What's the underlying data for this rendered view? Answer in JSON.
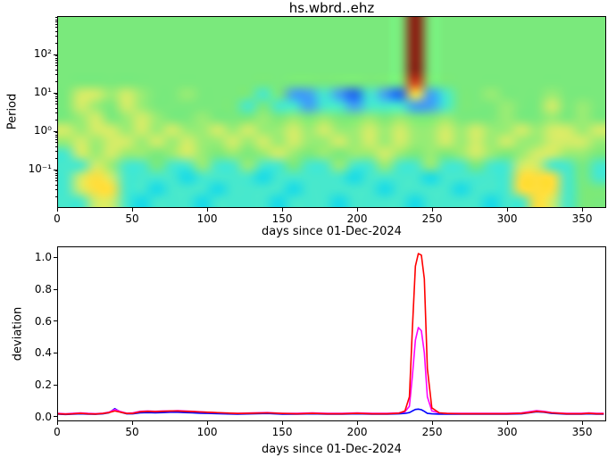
{
  "figure_title": "hs.wbrd..ehz",
  "chart_data": [
    {
      "type": "heatmap",
      "title": "hs.wbrd..ehz",
      "xlabel": "days since 01-Dec-2024",
      "ylabel": "Period",
      "x_range": [
        0,
        366
      ],
      "x_ticks": [
        0,
        50,
        100,
        150,
        200,
        250,
        300,
        350
      ],
      "y_scale": "log",
      "y_range": [
        0.01,
        1000
      ],
      "y_ticks": [
        {
          "value": 100,
          "label": "10²"
        },
        {
          "value": 10,
          "label": "10¹"
        },
        {
          "value": 1,
          "label": "10⁰"
        },
        {
          "value": 0.1,
          "label": "10⁻¹"
        }
      ],
      "legend": null,
      "grid_on": false,
      "palette": {
        "g": "#7ae97c",
        "e": "#9aec74",
        "y": "#d4ec68",
        "Y": "#ffde3c",
        "c": "#47e8cd",
        "C": "#16daea",
        "b": "#41a0f2",
        "B": "#1e66ee",
        "r": "#8c0f0a",
        "q": "#d43413"
      },
      "grid": [
        "gggggggggggggggggggggggrgggggggggggg",
        "gggggggggggggggggggggggrgggggggggggg",
        "gggggggggggggggggggggggrgggggggggggg",
        "gggggggggggggggggggggggrgggggggggggg",
        "gggggggggggggggggggggggrgggggggggggg",
        "gggggggggggggggggggggggqgggggggggggg",
        "gyyeyeggeggggcgbbcbBcbBYbcggegggeggg",
        "gyegyeggggggcgccbccbcccbbcgggeggygeg",
        "geygeyeggegggegegeggegeggegggeggegeg",
        "yeyyeyeyeeyeyeeyeyeeyeyeeyeyeeyeyyey",
        "eyeyyeyeyeeyeyeyeeyeyeyeeyeyeyeeyyye",
        "cyeyeegeyegegeyegegeeyegegeyegeyyeeg",
        "ccyeccgccecceccgcceccecceccgccyyccgc",
        "cyYyccccCccccCcccccCccccCcccccYYYcgc",
        "cyYYccCcccCccccCcccccCccccCcccYYYcgg",
        "ccyycCcccCccccCcccCccccCccccCccYycgg"
      ]
    },
    {
      "type": "line",
      "xlabel": "days since 01-Dec-2024",
      "ylabel": "deviation",
      "x_range": [
        0,
        366
      ],
      "x_ticks": [
        0,
        50,
        100,
        150,
        200,
        250,
        300,
        350
      ],
      "y_range": [
        -0.03,
        1.07
      ],
      "y_ticks": [
        0.0,
        0.2,
        0.4,
        0.6,
        0.8,
        1.0
      ],
      "legend": null,
      "x": [
        0,
        5,
        10,
        15,
        20,
        25,
        30,
        34,
        38,
        42,
        46,
        50,
        55,
        60,
        65,
        70,
        75,
        80,
        85,
        90,
        95,
        100,
        110,
        120,
        130,
        140,
        150,
        160,
        170,
        180,
        190,
        200,
        210,
        220,
        228,
        232,
        235,
        237,
        239,
        241,
        243,
        245,
        247,
        250,
        255,
        260,
        270,
        280,
        290,
        300,
        310,
        315,
        320,
        325,
        330,
        340,
        350,
        355,
        360,
        365
      ],
      "series": [
        {
          "name": "blue",
          "color": "#0000ff",
          "values": [
            0.01,
            0.008,
            0.01,
            0.012,
            0.01,
            0.009,
            0.012,
            0.018,
            0.045,
            0.022,
            0.012,
            0.012,
            0.018,
            0.02,
            0.018,
            0.02,
            0.022,
            0.022,
            0.02,
            0.018,
            0.016,
            0.015,
            0.012,
            0.01,
            0.012,
            0.014,
            0.01,
            0.01,
            0.012,
            0.01,
            0.01,
            0.012,
            0.01,
            0.01,
            0.012,
            0.015,
            0.02,
            0.03,
            0.04,
            0.042,
            0.038,
            0.028,
            0.015,
            0.012,
            0.01,
            0.01,
            0.01,
            0.01,
            0.01,
            0.01,
            0.012,
            0.018,
            0.025,
            0.022,
            0.015,
            0.01,
            0.01,
            0.012,
            0.01,
            0.01
          ]
        },
        {
          "name": "magenta",
          "color": "#ff00ff",
          "values": [
            0.015,
            0.012,
            0.015,
            0.018,
            0.015,
            0.013,
            0.016,
            0.022,
            0.04,
            0.026,
            0.016,
            0.018,
            0.028,
            0.03,
            0.028,
            0.03,
            0.03,
            0.032,
            0.03,
            0.028,
            0.025,
            0.022,
            0.018,
            0.015,
            0.018,
            0.02,
            0.015,
            0.015,
            0.018,
            0.015,
            0.015,
            0.018,
            0.015,
            0.015,
            0.018,
            0.025,
            0.06,
            0.25,
            0.48,
            0.56,
            0.54,
            0.4,
            0.12,
            0.03,
            0.018,
            0.015,
            0.015,
            0.015,
            0.015,
            0.015,
            0.018,
            0.025,
            0.032,
            0.028,
            0.02,
            0.015,
            0.015,
            0.018,
            0.015,
            0.015
          ]
        },
        {
          "name": "red",
          "color": "#ff0000",
          "values": [
            0.012,
            0.01,
            0.012,
            0.015,
            0.012,
            0.011,
            0.014,
            0.02,
            0.03,
            0.022,
            0.014,
            0.015,
            0.025,
            0.028,
            0.026,
            0.028,
            0.03,
            0.03,
            0.028,
            0.026,
            0.024,
            0.022,
            0.018,
            0.014,
            0.016,
            0.018,
            0.014,
            0.012,
            0.015,
            0.012,
            0.012,
            0.015,
            0.012,
            0.012,
            0.016,
            0.03,
            0.12,
            0.55,
            0.95,
            1.03,
            1.02,
            0.87,
            0.3,
            0.05,
            0.018,
            0.014,
            0.012,
            0.012,
            0.012,
            0.012,
            0.015,
            0.02,
            0.028,
            0.024,
            0.018,
            0.012,
            0.012,
            0.015,
            0.012,
            0.012
          ]
        }
      ]
    }
  ]
}
